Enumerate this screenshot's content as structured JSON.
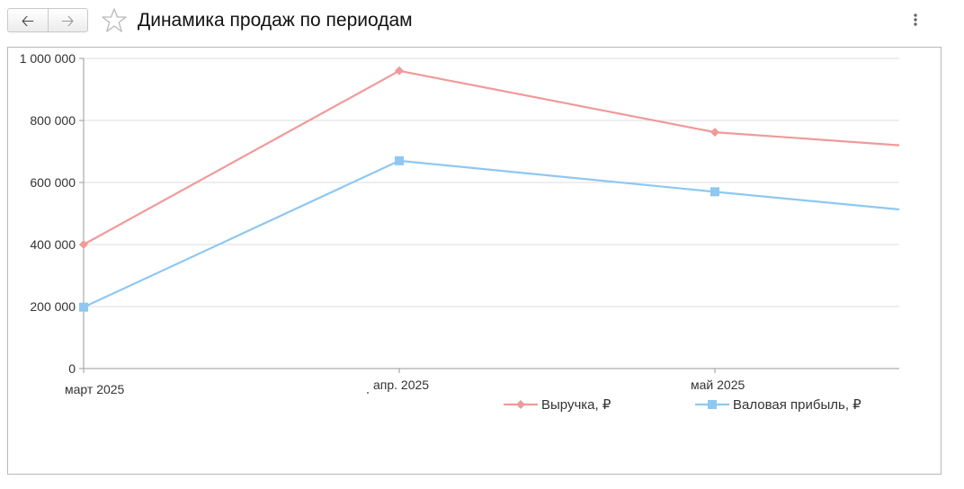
{
  "header": {
    "title": "Динамика продаж по периодам",
    "back_icon": "arrow-left-icon",
    "forward_icon": "arrow-right-icon",
    "favorite_icon": "star-icon",
    "more_icon": "more-vertical-icon"
  },
  "colors": {
    "revenue": "#f09a9a",
    "profit": "#8ec8f2",
    "grid": "#dcdcdc",
    "axis": "#9a9a9a"
  },
  "chart_data": {
    "type": "line",
    "title": "",
    "xlabel": "",
    "ylabel": "",
    "categories": [
      "март 2025",
      "апр. 2025",
      "май 2025"
    ],
    "ylim": [
      0,
      1000000
    ],
    "yticks": [
      0,
      200000,
      400000,
      600000,
      800000,
      1000000
    ],
    "ytick_labels": [
      "0",
      "200 000",
      "400 000",
      "600 000",
      "800 000",
      "1 000 000"
    ],
    "grid": true,
    "legend_position": "bottom-right",
    "series": [
      {
        "name": "Выручка, ₽",
        "marker": "diamond",
        "values": [
          400000,
          960000,
          762000
        ],
        "end_value": 720000
      },
      {
        "name": "Валовая прибыль, ₽",
        "marker": "square",
        "values": [
          198000,
          670000,
          570000
        ],
        "end_value": 513000
      }
    ]
  }
}
